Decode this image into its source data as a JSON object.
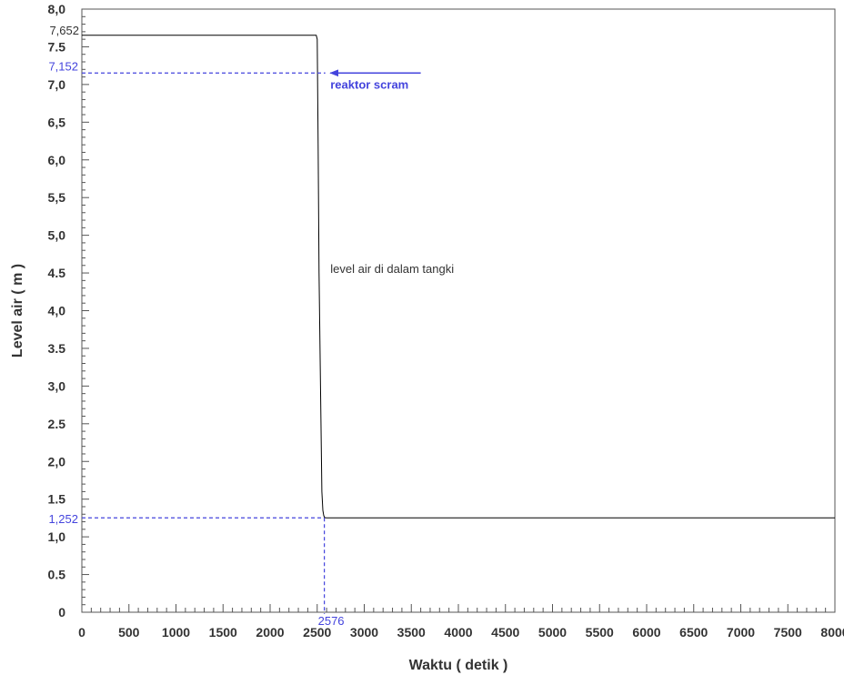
{
  "chart_data": {
    "type": "line",
    "xlabel": "Waktu ( detik )",
    "ylabel": "Level air ( m )",
    "xlim": [
      0,
      8000
    ],
    "ylim": [
      0,
      8.0
    ],
    "x_ticks": [
      0,
      500,
      1000,
      1500,
      2000,
      2500,
      3000,
      3500,
      4000,
      4500,
      5000,
      5500,
      6000,
      6500,
      7000,
      7500,
      8000
    ],
    "x_tick_labels": [
      "0",
      "500",
      "1000",
      "1500",
      "2000",
      "2500",
      "3000",
      "3500",
      "4000",
      "4500",
      "5000",
      "5500",
      "6000",
      "6500",
      "7000",
      "7500",
      "8000"
    ],
    "y_ticks": [
      0,
      0.5,
      1.0,
      1.5,
      2.0,
      2.5,
      3.0,
      3.5,
      4.0,
      4.5,
      5.0,
      5.5,
      6.0,
      6.5,
      7.0,
      7.5,
      8.0
    ],
    "y_tick_labels": [
      "0",
      "0.5",
      "1,0",
      "1.5",
      "2,0",
      "2.5",
      "3,0",
      "3.5",
      "4,0",
      "4.5",
      "5,0",
      "5,5",
      "6,0",
      "6,5",
      "7,0",
      "7.5",
      "8,0"
    ],
    "grid": false,
    "series": [
      {
        "x": [
          0,
          2490,
          2500,
          2510,
          2520,
          2535,
          2550,
          2560,
          2570,
          2580,
          2600,
          8000
        ],
        "y": [
          7.652,
          7.652,
          7.6,
          6.2,
          4.5,
          3.0,
          1.6,
          1.35,
          1.28,
          1.255,
          1.252,
          1.252
        ],
        "color": "#000000"
      }
    ],
    "annotations": {
      "top_value": {
        "label": "7,652",
        "y": 7.652
      },
      "scram_value": {
        "label": "7,152",
        "y": 7.152
      },
      "bottom_value": {
        "label": "1,252",
        "y": 1.252
      },
      "time_value": {
        "label": "2576",
        "x": 2576
      },
      "scram_text": "reaktor scram",
      "scram_arrow": {
        "x_from": 3600,
        "x_to": 2640,
        "y": 7.152
      },
      "series_text": "level air di dalam tangki",
      "series_text_pos": {
        "x": 2640,
        "y": 4.5
      },
      "color": "#4444dd"
    }
  }
}
